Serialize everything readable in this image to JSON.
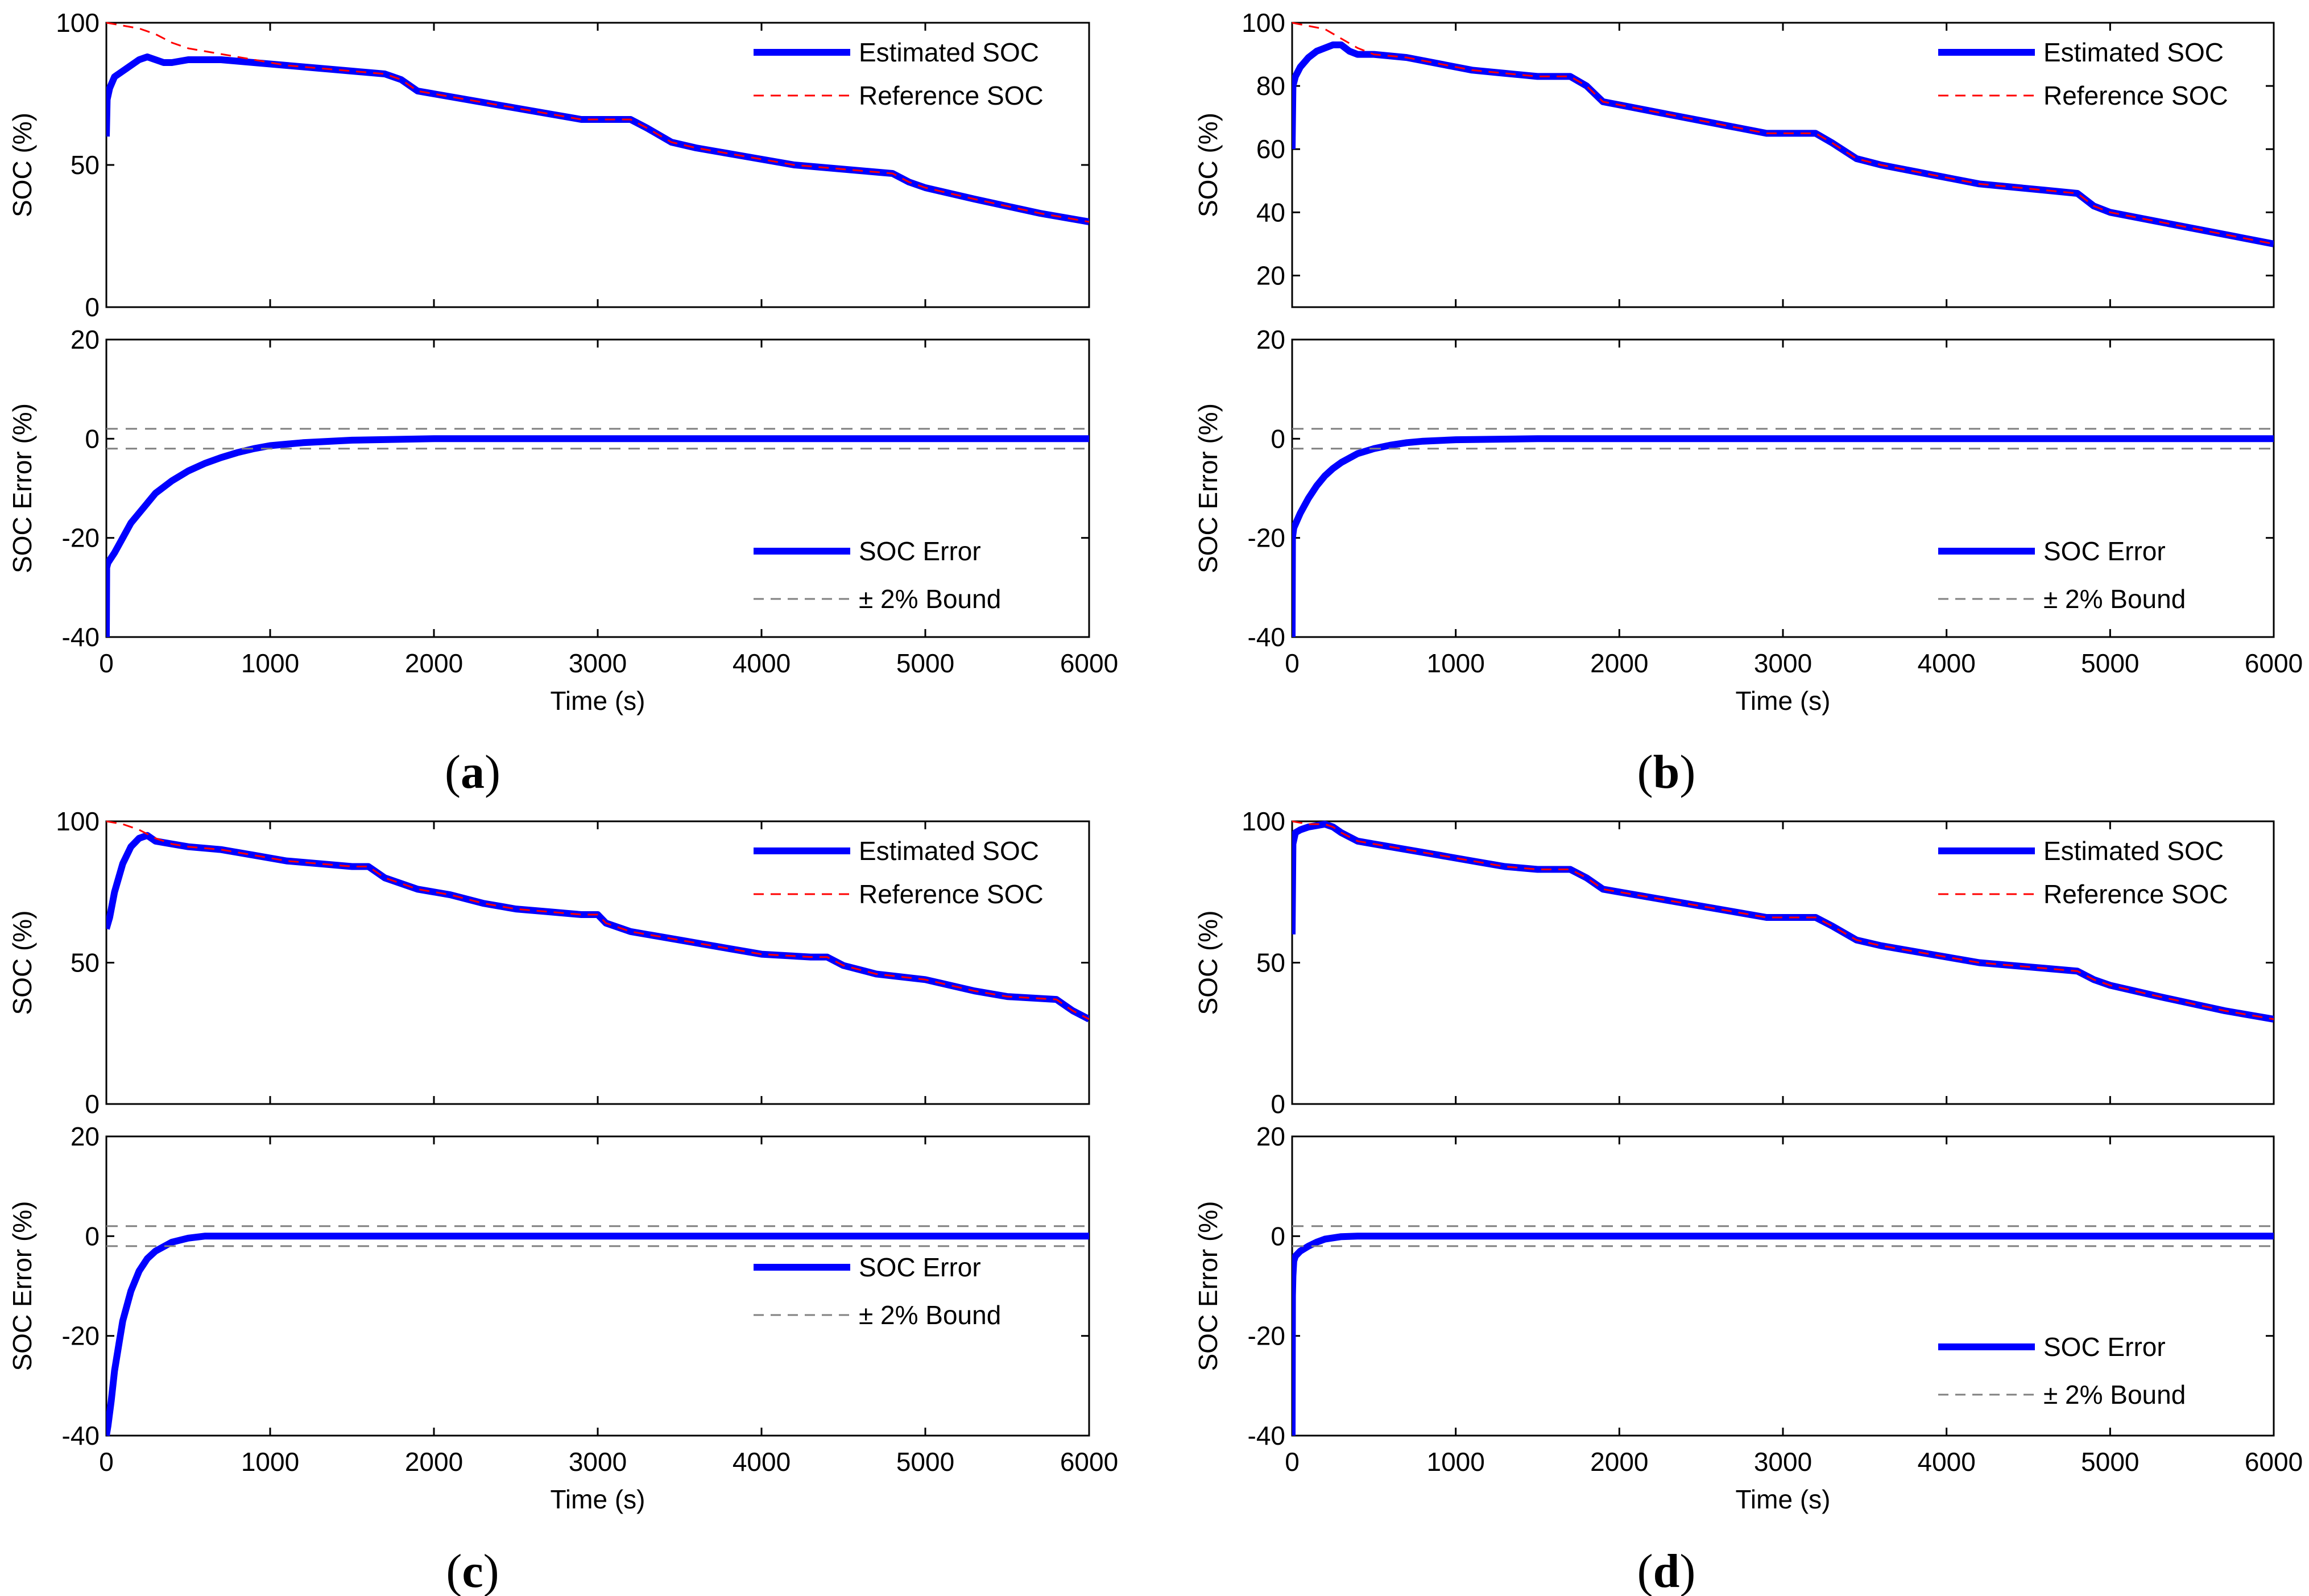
{
  "figure": {
    "panels": [
      {
        "letter": "a",
        "top_legend_pos": "top-right",
        "bottom_legend_pos": "lower-right"
      },
      {
        "letter": "b",
        "top_legend_pos": "top-right",
        "bottom_legend_pos": "lower-right"
      },
      {
        "letter": "c",
        "top_legend_pos": "top-right",
        "bottom_legend_pos": "middle-right"
      },
      {
        "letter": "d",
        "top_legend_pos": "top-right",
        "bottom_legend_pos": "lower-right"
      }
    ],
    "colors": {
      "estimated": "#0000ff",
      "reference": "#ff0000",
      "bound": "#808080",
      "axis": "#000000"
    }
  },
  "chart_data": [
    {
      "panel": "a",
      "type": "line",
      "title": "",
      "xlabel": "Time (s)",
      "ylabel": "SOC (%)",
      "xlim": [
        0,
        6000
      ],
      "ylim": [
        0,
        100
      ],
      "xticks": [
        0,
        1000,
        2000,
        3000,
        4000,
        5000,
        6000
      ],
      "yticks": [
        0,
        50,
        100
      ],
      "legend": [
        "Estimated SOC",
        "Reference SOC"
      ],
      "series": [
        {
          "name": "Estimated SOC",
          "x": [
            0,
            5,
            20,
            50,
            100,
            150,
            200,
            250,
            300,
            350,
            400,
            500,
            700,
            900,
            1100,
            1300,
            1500,
            1700,
            1800,
            1900,
            2000,
            2300,
            2500,
            2700,
            2900,
            3200,
            3300,
            3450,
            3600,
            3900,
            4200,
            4600,
            4800,
            4900,
            5000,
            5300,
            5700,
            6000
          ],
          "y": [
            60,
            73,
            77,
            81,
            83,
            85,
            87,
            88,
            87,
            86,
            86,
            87,
            87,
            86,
            85,
            84,
            83,
            82,
            80,
            76,
            75,
            72,
            70,
            68,
            66,
            66,
            63,
            58,
            56,
            53,
            50,
            48,
            47,
            44,
            42,
            38,
            33,
            30
          ]
        },
        {
          "name": "Reference SOC",
          "x": [
            0,
            100,
            200,
            300,
            400,
            500,
            600,
            700,
            800,
            900,
            1100,
            1300,
            1500,
            1700,
            1800,
            1900,
            2000,
            2300,
            2500,
            2700,
            2900,
            3200,
            3300,
            3450,
            3600,
            3900,
            4200,
            4600,
            4800,
            4900,
            5000,
            5300,
            5700,
            6000
          ],
          "y": [
            100,
            99,
            98,
            96,
            93,
            91,
            90,
            89,
            88,
            87,
            85,
            84,
            83,
            82,
            80,
            76,
            75,
            72,
            70,
            68,
            66,
            66,
            63,
            58,
            56,
            53,
            50,
            48,
            47,
            44,
            42,
            38,
            33,
            30
          ]
        }
      ]
    },
    {
      "panel": "a",
      "type": "line",
      "title": "",
      "xlabel": "Time (s)",
      "ylabel": "SOC Error (%)",
      "xlim": [
        0,
        6000
      ],
      "ylim": [
        -40,
        20
      ],
      "xticks": [
        0,
        1000,
        2000,
        3000,
        4000,
        5000,
        6000
      ],
      "yticks": [
        -40,
        -20,
        0,
        20
      ],
      "legend": [
        "SOC Error",
        "± 2% Bound"
      ],
      "series": [
        {
          "name": "SOC Error",
          "x": [
            0,
            2,
            10,
            50,
            100,
            150,
            200,
            300,
            400,
            500,
            600,
            700,
            800,
            900,
            1000,
            1200,
            1500,
            2000,
            3000,
            4000,
            5000,
            6000
          ],
          "y": [
            -40,
            -26,
            -25,
            -23,
            -20,
            -17,
            -15,
            -11,
            -8.5,
            -6.5,
            -5,
            -3.8,
            -2.8,
            -2,
            -1.4,
            -0.8,
            -0.3,
            0,
            0,
            0,
            0,
            0
          ]
        },
        {
          "name": "+2% Bound",
          "x": [
            0,
            6000
          ],
          "y": [
            2,
            2
          ]
        },
        {
          "name": "-2% Bound",
          "x": [
            0,
            6000
          ],
          "y": [
            -2,
            -2
          ]
        }
      ]
    },
    {
      "panel": "b",
      "type": "line",
      "title": "",
      "xlabel": "Time (s)",
      "ylabel": "SOC (%)",
      "xlim": [
        0,
        6000
      ],
      "ylim": [
        10,
        100
      ],
      "xticks": [
        0,
        1000,
        2000,
        3000,
        4000,
        5000,
        6000
      ],
      "yticks": [
        20,
        40,
        60,
        80,
        100
      ],
      "legend": [
        "Estimated SOC",
        "Reference SOC"
      ],
      "series": [
        {
          "name": "Estimated SOC",
          "x": [
            0,
            5,
            20,
            50,
            100,
            150,
            200,
            250,
            300,
            350,
            400,
            500,
            700,
            900,
            1100,
            1300,
            1500,
            1700,
            1800,
            1900,
            2000,
            2300,
            2500,
            2700,
            2900,
            3200,
            3300,
            3450,
            3600,
            3900,
            4200,
            4600,
            4800,
            4900,
            5000,
            5300,
            5700,
            6000
          ],
          "y": [
            60,
            80,
            83,
            86,
            89,
            91,
            92,
            93,
            93,
            91,
            90,
            90,
            89,
            87,
            85,
            84,
            83,
            83,
            80,
            75,
            74,
            71,
            69,
            67,
            65,
            65,
            62,
            57,
            55,
            52,
            49,
            47,
            46,
            42,
            40,
            37,
            33,
            30
          ]
        },
        {
          "name": "Reference SOC",
          "x": [
            0,
            100,
            200,
            300,
            400,
            500,
            700,
            900,
            1100,
            1300,
            1500,
            1700,
            1800,
            1900,
            2000,
            2300,
            2500,
            2700,
            2900,
            3200,
            3300,
            3450,
            3600,
            3900,
            4200,
            4600,
            4800,
            4900,
            5000,
            5300,
            5700,
            6000
          ],
          "y": [
            100,
            99,
            98,
            95,
            92,
            90,
            89,
            87,
            85,
            84,
            83,
            83,
            80,
            75,
            74,
            71,
            69,
            67,
            65,
            65,
            62,
            57,
            55,
            52,
            49,
            47,
            46,
            42,
            40,
            37,
            33,
            30
          ]
        }
      ]
    },
    {
      "panel": "b",
      "type": "line",
      "title": "",
      "xlabel": "Time (s)",
      "ylabel": "SOC Error (%)",
      "xlim": [
        0,
        6000
      ],
      "ylim": [
        -40,
        20
      ],
      "xticks": [
        0,
        1000,
        2000,
        3000,
        4000,
        5000,
        6000
      ],
      "yticks": [
        -40,
        -20,
        0,
        20
      ],
      "legend": [
        "SOC Error",
        "± 2% Bound"
      ],
      "series": [
        {
          "name": "SOC Error",
          "x": [
            0,
            2,
            10,
            50,
            100,
            150,
            200,
            250,
            300,
            400,
            500,
            600,
            700,
            800,
            1000,
            1500,
            2000,
            3000,
            4000,
            5000,
            6000
          ],
          "y": [
            -40,
            -20,
            -18,
            -15,
            -12,
            -9.5,
            -7.5,
            -6,
            -4.8,
            -3,
            -2,
            -1.3,
            -0.8,
            -0.5,
            -0.2,
            0,
            0,
            0,
            0,
            0,
            0
          ]
        },
        {
          "name": "+2% Bound",
          "x": [
            0,
            6000
          ],
          "y": [
            2,
            2
          ]
        },
        {
          "name": "-2% Bound",
          "x": [
            0,
            6000
          ],
          "y": [
            -2,
            -2
          ]
        }
      ]
    },
    {
      "panel": "c",
      "type": "line",
      "title": "",
      "xlabel": "Time (s)",
      "ylabel": "SOC (%)",
      "xlim": [
        0,
        6000
      ],
      "ylim": [
        0,
        100
      ],
      "xticks": [
        0,
        1000,
        2000,
        3000,
        4000,
        5000,
        6000
      ],
      "yticks": [
        0,
        50,
        100
      ],
      "legend": [
        "Estimated SOC",
        "Reference SOC"
      ],
      "series": [
        {
          "name": "Estimated SOC",
          "x": [
            0,
            20,
            50,
            100,
            150,
            200,
            250,
            300,
            400,
            500,
            700,
            900,
            1100,
            1300,
            1500,
            1600,
            1700,
            1900,
            2100,
            2300,
            2500,
            2700,
            2900,
            3000,
            3050,
            3200,
            3500,
            3800,
            4000,
            4300,
            4400,
            4500,
            4700,
            5000,
            5300,
            5500,
            5800,
            5900,
            6000
          ],
          "y": [
            62,
            66,
            75,
            85,
            91,
            94,
            95,
            93,
            92,
            91,
            90,
            88,
            86,
            85,
            84,
            84,
            80,
            76,
            74,
            71,
            69,
            68,
            67,
            67,
            64,
            61,
            58,
            55,
            53,
            52,
            52,
            49,
            46,
            44,
            40,
            38,
            37,
            33,
            30
          ]
        },
        {
          "name": "Reference SOC",
          "x": [
            0,
            100,
            200,
            300,
            400,
            500,
            700,
            900,
            1100,
            1300,
            1500,
            1600,
            1700,
            1900,
            2100,
            2300,
            2500,
            2700,
            2900,
            3000,
            3050,
            3200,
            3500,
            3800,
            4000,
            4300,
            4400,
            4500,
            4700,
            5000,
            5300,
            5500,
            5800,
            5900,
            6000
          ],
          "y": [
            100,
            99,
            97,
            94,
            92,
            91,
            90,
            88,
            86,
            85,
            84,
            84,
            80,
            76,
            74,
            71,
            69,
            68,
            67,
            67,
            64,
            61,
            58,
            55,
            53,
            52,
            52,
            49,
            46,
            44,
            40,
            38,
            37,
            33,
            30
          ]
        }
      ]
    },
    {
      "panel": "c",
      "type": "line",
      "title": "",
      "xlabel": "Time (s)",
      "ylabel": "SOC Error (%)",
      "xlim": [
        0,
        6000
      ],
      "ylim": [
        -40,
        20
      ],
      "xticks": [
        0,
        1000,
        2000,
        3000,
        4000,
        5000,
        6000
      ],
      "yticks": [
        -40,
        -20,
        0,
        20
      ],
      "legend": [
        "SOC Error",
        "± 2% Bound"
      ],
      "series": [
        {
          "name": "SOC Error",
          "x": [
            0,
            10,
            30,
            50,
            80,
            100,
            150,
            200,
            250,
            300,
            400,
            500,
            600,
            1000,
            2000,
            3000,
            4000,
            5000,
            6000
          ],
          "y": [
            -40,
            -38,
            -33,
            -27,
            -21,
            -17,
            -11,
            -7,
            -4.5,
            -3,
            -1.2,
            -0.4,
            0,
            0,
            0,
            0,
            0,
            0,
            0
          ]
        },
        {
          "name": "+2% Bound",
          "x": [
            0,
            6000
          ],
          "y": [
            2,
            2
          ]
        },
        {
          "name": "-2% Bound",
          "x": [
            0,
            6000
          ],
          "y": [
            -2,
            -2
          ]
        }
      ]
    },
    {
      "panel": "d",
      "type": "line",
      "title": "",
      "xlabel": "Time (s)",
      "ylabel": "SOC (%)",
      "xlim": [
        0,
        6000
      ],
      "ylim": [
        0,
        100
      ],
      "xticks": [
        0,
        1000,
        2000,
        3000,
        4000,
        5000,
        6000
      ],
      "yticks": [
        0,
        50,
        100
      ],
      "legend": [
        "Estimated SOC",
        "Reference SOC"
      ],
      "series": [
        {
          "name": "Estimated SOC",
          "x": [
            0,
            5,
            20,
            50,
            100,
            200,
            250,
            300,
            400,
            500,
            700,
            900,
            1100,
            1300,
            1500,
            1700,
            1800,
            1900,
            2000,
            2300,
            2500,
            2700,
            2900,
            3200,
            3300,
            3450,
            3600,
            3900,
            4200,
            4600,
            4800,
            4900,
            5000,
            5300,
            5700,
            6000
          ],
          "y": [
            60,
            92,
            96,
            97,
            98,
            99,
            98,
            96,
            93,
            92,
            90,
            88,
            86,
            84,
            83,
            83,
            80,
            76,
            75,
            72,
            70,
            68,
            66,
            66,
            63,
            58,
            56,
            53,
            50,
            48,
            47,
            44,
            42,
            38,
            33,
            30
          ]
        },
        {
          "name": "Reference SOC",
          "x": [
            0,
            100,
            200,
            250,
            300,
            400,
            500,
            700,
            900,
            1100,
            1300,
            1500,
            1700,
            1800,
            1900,
            2000,
            2300,
            2500,
            2700,
            2900,
            3200,
            3300,
            3450,
            3600,
            3900,
            4200,
            4600,
            4800,
            4900,
            5000,
            5300,
            5700,
            6000
          ],
          "y": [
            100,
            99,
            99,
            98,
            96,
            93,
            92,
            90,
            88,
            86,
            84,
            83,
            83,
            80,
            76,
            75,
            72,
            70,
            68,
            66,
            66,
            63,
            58,
            56,
            53,
            50,
            48,
            47,
            44,
            42,
            38,
            33,
            30
          ]
        }
      ]
    },
    {
      "panel": "d",
      "type": "line",
      "title": "",
      "xlabel": "Time (s)",
      "ylabel": "SOC Error (%)",
      "xlim": [
        0,
        6000
      ],
      "ylim": [
        -40,
        20
      ],
      "xticks": [
        0,
        1000,
        2000,
        3000,
        4000,
        5000,
        6000
      ],
      "yticks": [
        -40,
        -20,
        0,
        20
      ],
      "legend": [
        "SOC Error",
        "± 2% Bound"
      ],
      "series": [
        {
          "name": "SOC Error",
          "x": [
            0,
            2,
            5,
            10,
            20,
            50,
            100,
            150,
            200,
            300,
            400,
            1000,
            2000,
            3000,
            4000,
            5000,
            6000
          ],
          "y": [
            -40,
            -12,
            -8,
            -5,
            -4,
            -3,
            -2,
            -1.2,
            -0.6,
            -0.1,
            0,
            0,
            0,
            0,
            0,
            0,
            0
          ]
        },
        {
          "name": "+2% Bound",
          "x": [
            0,
            6000
          ],
          "y": [
            2,
            2
          ]
        },
        {
          "name": "-2% Bound",
          "x": [
            0,
            6000
          ],
          "y": [
            -2,
            -2
          ]
        }
      ]
    }
  ]
}
